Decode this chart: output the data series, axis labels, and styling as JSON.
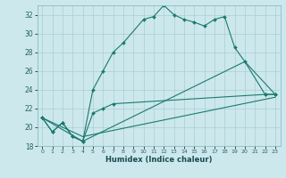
{
  "title": "",
  "xlabel": "Humidex (Indice chaleur)",
  "ylabel": "",
  "xlim": [
    -0.5,
    23.5
  ],
  "ylim": [
    18,
    33
  ],
  "yticks": [
    18,
    20,
    22,
    24,
    26,
    28,
    30,
    32
  ],
  "xticks": [
    0,
    1,
    2,
    3,
    4,
    5,
    6,
    7,
    8,
    9,
    10,
    11,
    12,
    13,
    14,
    15,
    16,
    17,
    18,
    19,
    20,
    21,
    22,
    23
  ],
  "bg_color": "#cce8ec",
  "grid_color": "#aacdd4",
  "line_color": "#1a7a6e",
  "line1_x": [
    0,
    1,
    2,
    3,
    4,
    5,
    6,
    7,
    8,
    10,
    11,
    12,
    13,
    14,
    15,
    16,
    17,
    18,
    19,
    20,
    22,
    23
  ],
  "line1_y": [
    21.0,
    19.5,
    20.5,
    19.0,
    18.5,
    24.0,
    26.0,
    28.0,
    29.0,
    31.5,
    31.8,
    33.0,
    32.0,
    31.5,
    31.2,
    30.8,
    31.5,
    31.8,
    28.5,
    27.0,
    23.5,
    23.5
  ],
  "line2_x": [
    0,
    1,
    2,
    3,
    4,
    5,
    6,
    7,
    22,
    23
  ],
  "line2_y": [
    21.0,
    19.5,
    20.5,
    19.0,
    18.5,
    21.5,
    22.0,
    22.5,
    23.5,
    23.5
  ],
  "line3_x": [
    0,
    4,
    23
  ],
  "line3_y": [
    21.0,
    19.0,
    23.2
  ],
  "line4_x": [
    0,
    4,
    20,
    23
  ],
  "line4_y": [
    21.0,
    18.5,
    27.0,
    23.5
  ]
}
